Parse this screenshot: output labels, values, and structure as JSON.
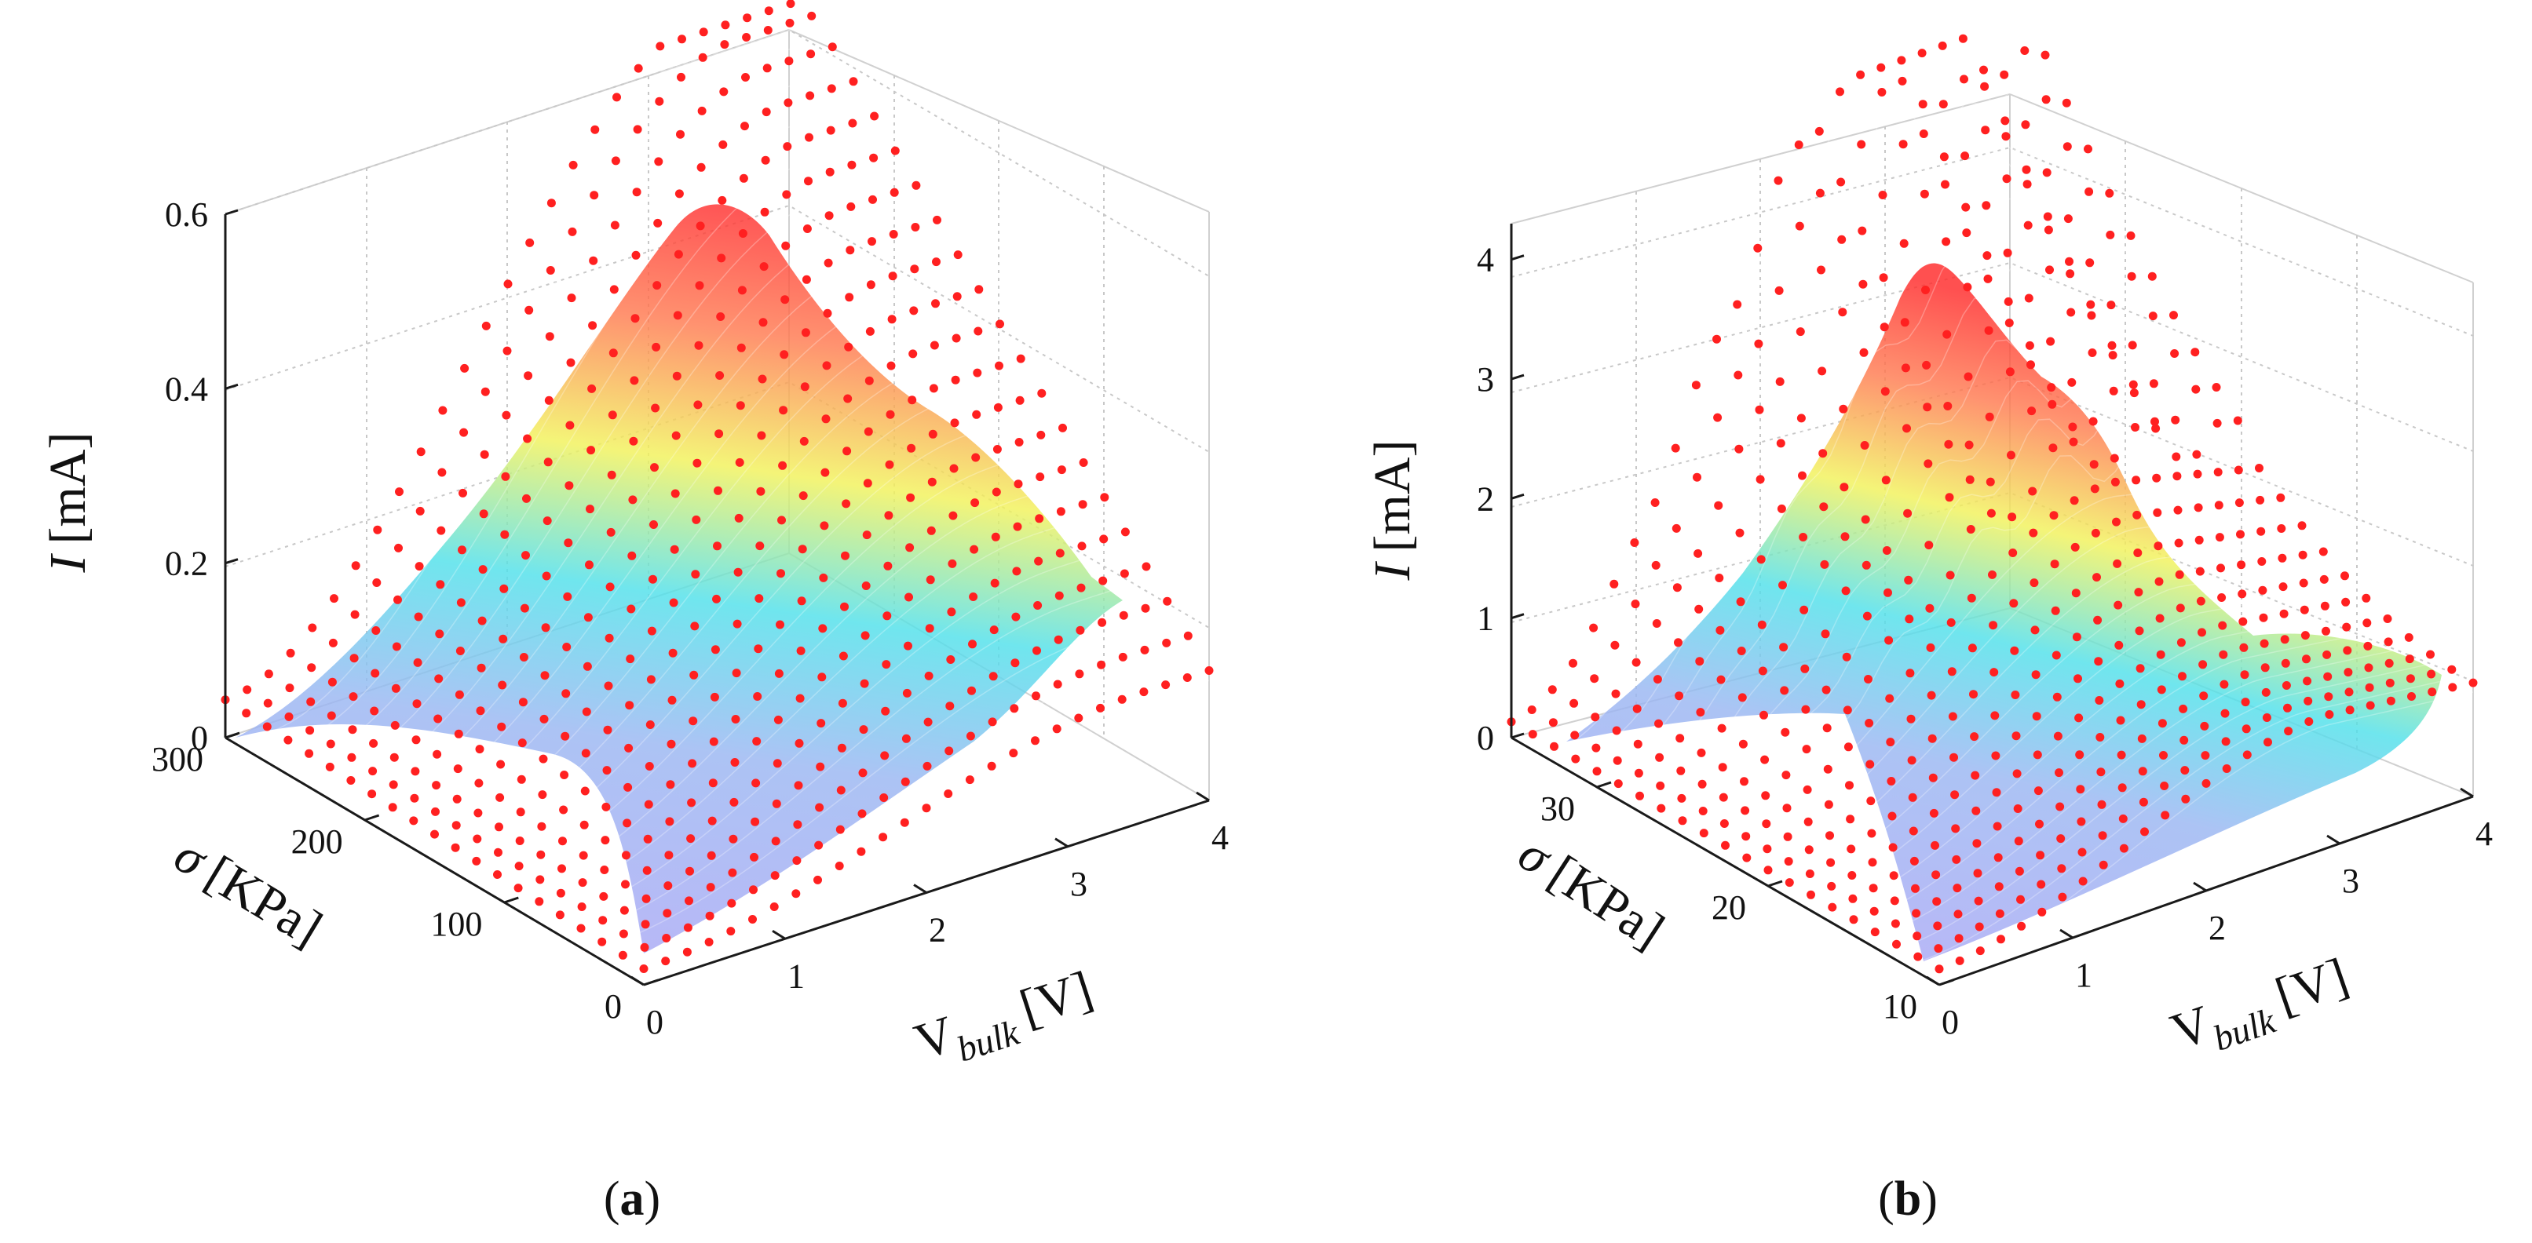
{
  "colors": {
    "measured_points": "#ff2020",
    "surface_low": "#8c8cf2",
    "surface_mid": "#30e6e6",
    "surface_high": "#ff2a2a"
  },
  "chart_data": [
    {
      "type": "surface3d",
      "panel_label": "a",
      "zlabel": {
        "var": "I",
        "unit": "[mA]"
      },
      "ylabel": {
        "var": "σ",
        "unit": "[KPa]"
      },
      "xlabel": {
        "var": "V",
        "sub": "bulk",
        "unit": "[V]"
      },
      "x_ticks": [
        "0",
        "1",
        "2",
        "3",
        "4"
      ],
      "y_ticks": [
        "0",
        "100",
        "200",
        "300"
      ],
      "z_ticks": [
        "0",
        "0.2",
        "0.4",
        "0.6"
      ],
      "xlim": [
        0,
        4
      ],
      "ylim": [
        0,
        300
      ],
      "zlim": [
        0,
        0.6
      ],
      "series": [
        {
          "name": "fitted surface",
          "style": "colormap mesh"
        },
        {
          "name": "measured",
          "style": "red dots"
        }
      ],
      "description_of_data": "Current rises with V_bulk and sigma; peak near V_bulk 4 at sigma 300 about 0.6 mA; about 0.15 mA at sigma 0, V_bulk 4"
    },
    {
      "type": "surface3d",
      "panel_label": "b",
      "zlabel": {
        "var": "I",
        "unit": "[mA]"
      },
      "ylabel": {
        "var": "σ",
        "unit": "[KPa]"
      },
      "xlabel": {
        "var": "V",
        "sub": "bulk",
        "unit": "[V]"
      },
      "x_ticks": [
        "0",
        "1",
        "2",
        "3",
        "4"
      ],
      "y_ticks": [
        "10",
        "20",
        "30"
      ],
      "z_ticks": [
        "0",
        "1",
        "2",
        "3",
        "4"
      ],
      "xlim": [
        0,
        4
      ],
      "ylim": [
        10,
        35
      ],
      "zlim": [
        0,
        4.3
      ],
      "series": [
        {
          "name": "fitted surface",
          "style": "colormap mesh"
        },
        {
          "name": "measured",
          "style": "red dots"
        }
      ]
    }
  ]
}
